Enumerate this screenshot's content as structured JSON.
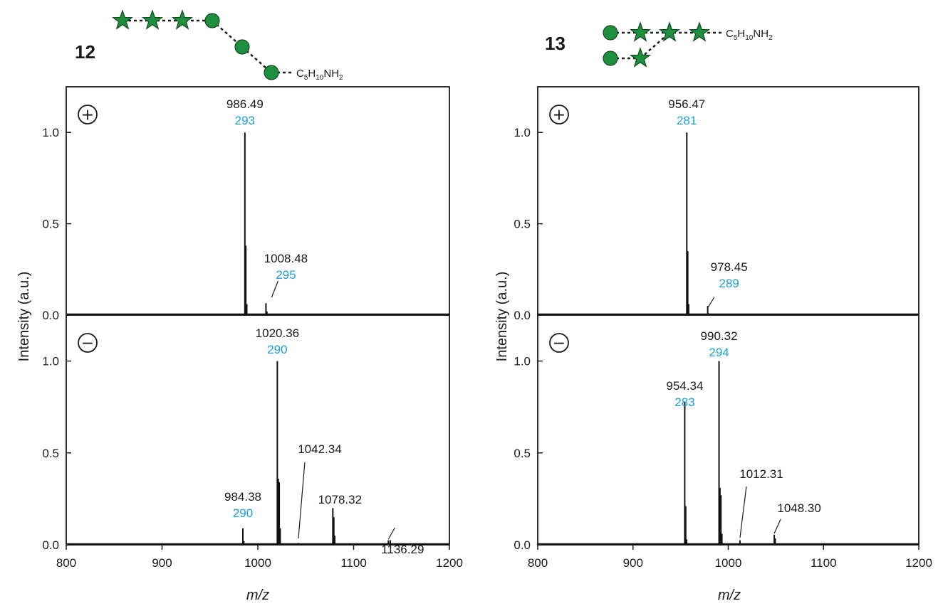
{
  "panels": [
    {
      "compound": "12",
      "substituent": {
        "a": "C",
        "a_sub": "5",
        "b": "H",
        "b_sub": "10",
        "c": "NH",
        "c_sub": "2"
      },
      "glycan_icons": [
        "star-icon",
        "star-icon",
        "star-icon",
        "circle-icon",
        "circle-icon",
        "circle-icon"
      ],
      "xlabel": "m/z",
      "ylabel": "Intensity (a.u.)"
    },
    {
      "compound": "13",
      "substituent": {
        "a": "C",
        "a_sub": "5",
        "b": "H",
        "b_sub": "10",
        "c": "NH",
        "c_sub": "2"
      },
      "glycan_icons": [
        "circle-icon",
        "star-icon",
        "star-icon",
        "star-icon",
        "circle-icon",
        "star-icon"
      ],
      "xlabel": "m/z",
      "ylabel": "Intensity (a.u.)"
    }
  ],
  "colors": {
    "glycan": "#1e8f3e",
    "glycan_edge": "#0f4a1f",
    "peak_id": "#1ca0dc",
    "axis": "#1a1a1a"
  },
  "chart_data": [
    {
      "type": "bar",
      "panel": "12",
      "mode": "positive",
      "mode_symbol": "+",
      "xlim": [
        800,
        1200
      ],
      "ylim": [
        0,
        1.25
      ],
      "xticks": [
        800,
        900,
        1000,
        1100,
        1200
      ],
      "yticks": [
        "0.0",
        "0.5",
        "1.0"
      ],
      "xlabel": "m/z",
      "ylabel": "Intensity (a.u.)",
      "peaks": [
        {
          "x": 986.49,
          "y": 1.0
        },
        {
          "x": 987.49,
          "y": 0.38
        },
        {
          "x": 988.49,
          "y": 0.06
        },
        {
          "x": 1008.48,
          "y": 0.065
        },
        {
          "x": 1009.48,
          "y": 0.02
        }
      ],
      "annotations": [
        {
          "x": 986.49,
          "mz": "986.49",
          "id": "293"
        },
        {
          "x": 1008.48,
          "mz": "1008.48",
          "id": "295"
        }
      ]
    },
    {
      "type": "bar",
      "panel": "12",
      "mode": "negative",
      "mode_symbol": "−",
      "xlim": [
        800,
        1200
      ],
      "ylim": [
        0,
        1.25
      ],
      "xticks": [
        800,
        900,
        1000,
        1100,
        1200
      ],
      "yticks": [
        "0.0",
        "0.5",
        "1.0"
      ],
      "xlabel": "m/z",
      "ylabel": "Intensity (a.u.)",
      "peaks": [
        {
          "x": 984.38,
          "y": 0.09
        },
        {
          "x": 985.38,
          "y": 0.02
        },
        {
          "x": 1020.36,
          "y": 1.0
        },
        {
          "x": 1021.36,
          "y": 0.36
        },
        {
          "x": 1022.36,
          "y": 0.34
        },
        {
          "x": 1023.36,
          "y": 0.09
        },
        {
          "x": 1042.34,
          "y": 0.01
        },
        {
          "x": 1078.32,
          "y": 0.2
        },
        {
          "x": 1079.32,
          "y": 0.15
        },
        {
          "x": 1080.32,
          "y": 0.05
        },
        {
          "x": 1136.29,
          "y": 0.025
        },
        {
          "x": 1138.29,
          "y": 0.025
        }
      ],
      "annotations": [
        {
          "x": 1020.36,
          "mz": "1020.36",
          "id": "290"
        },
        {
          "x": 984.38,
          "mz": "984.38",
          "id": "290"
        },
        {
          "x": 1042.34,
          "mz": "1042.34",
          "id": ""
        },
        {
          "x": 1078.32,
          "mz": "1078.32",
          "id": ""
        },
        {
          "x": 1136.29,
          "mz": "1136.29",
          "id": ""
        }
      ]
    },
    {
      "type": "bar",
      "panel": "13",
      "mode": "positive",
      "mode_symbol": "+",
      "xlim": [
        800,
        1200
      ],
      "ylim": [
        0,
        1.25
      ],
      "xticks": [
        800,
        900,
        1000,
        1100,
        1200
      ],
      "yticks": [
        "0.0",
        "0.5",
        "1.0"
      ],
      "xlabel": "m/z",
      "ylabel": "Intensity (a.u.)",
      "peaks": [
        {
          "x": 956.47,
          "y": 1.0
        },
        {
          "x": 957.47,
          "y": 0.35
        },
        {
          "x": 958.47,
          "y": 0.06
        },
        {
          "x": 978.45,
          "y": 0.05
        },
        {
          "x": 979.45,
          "y": 0.01
        }
      ],
      "annotations": [
        {
          "x": 956.47,
          "mz": "956.47",
          "id": "281"
        },
        {
          "x": 978.45,
          "mz": "978.45",
          "id": "289"
        }
      ]
    },
    {
      "type": "bar",
      "panel": "13",
      "mode": "negative",
      "mode_symbol": "−",
      "xlim": [
        800,
        1200
      ],
      "ylim": [
        0,
        1.25
      ],
      "xticks": [
        800,
        900,
        1000,
        1100,
        1200
      ],
      "yticks": [
        "0.0",
        "0.5",
        "1.0"
      ],
      "xlabel": "m/z",
      "ylabel": "Intensity (a.u.)",
      "peaks": [
        {
          "x": 954.34,
          "y": 0.78
        },
        {
          "x": 955.34,
          "y": 0.21
        },
        {
          "x": 956.34,
          "y": 0.03
        },
        {
          "x": 990.32,
          "y": 1.0
        },
        {
          "x": 991.32,
          "y": 0.31
        },
        {
          "x": 992.32,
          "y": 0.27
        },
        {
          "x": 993.32,
          "y": 0.06
        },
        {
          "x": 1012.31,
          "y": 0.025
        },
        {
          "x": 1048.3,
          "y": 0.055
        },
        {
          "x": 1049.3,
          "y": 0.035
        }
      ],
      "annotations": [
        {
          "x": 990.32,
          "mz": "990.32",
          "id": "294"
        },
        {
          "x": 954.34,
          "mz": "954.34",
          "id": "283"
        },
        {
          "x": 1012.31,
          "mz": "1012.31",
          "id": ""
        },
        {
          "x": 1048.3,
          "mz": "1048.30",
          "id": ""
        }
      ]
    }
  ]
}
